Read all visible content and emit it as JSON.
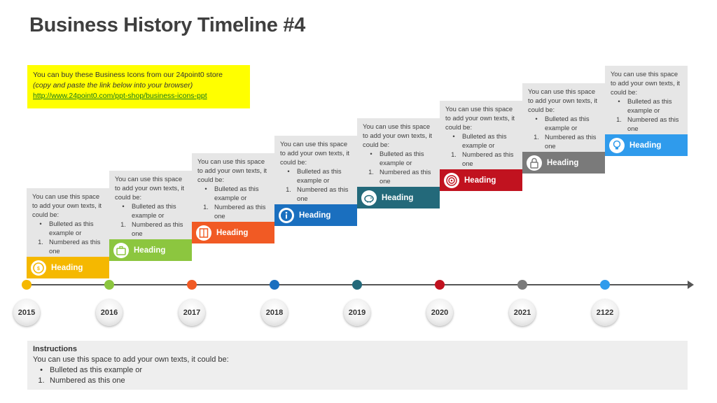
{
  "title": "Business History Timeline #4",
  "promo": {
    "line1": "You can buy these Business Icons from our 24point0 store",
    "line2": "(copy and paste the link below into your browser)",
    "line3": "http://www.24point0.com/ppt-shop/business-icons-ppt"
  },
  "card_text": {
    "intro": "You can use this space to add your own texts, it could be:",
    "bullet_mark": "•",
    "bullet": "Bulleted as this example or",
    "number_mark": "1.",
    "number": "Numbered  as this one"
  },
  "cards": [
    {
      "heading": "Heading",
      "color": "#f5b800",
      "icon": "coin-icon"
    },
    {
      "heading": "Heading",
      "color": "#8cc63f",
      "icon": "briefcase-icon"
    },
    {
      "heading": "Heading",
      "color": "#f15a24",
      "icon": "book-icon"
    },
    {
      "heading": "Heading",
      "color": "#1a6fbf",
      "icon": "info-icon"
    },
    {
      "heading": "Heading",
      "color": "#23697a",
      "icon": "piggy-bank-icon"
    },
    {
      "heading": "Heading",
      "color": "#c1121f",
      "icon": "target-icon"
    },
    {
      "heading": "Heading",
      "color": "#7a7a7a",
      "icon": "lock-icon"
    },
    {
      "heading": "Heading",
      "color": "#2f9bec",
      "icon": "lightbulb-icon"
    }
  ],
  "years": [
    "2015",
    "2016",
    "2017",
    "2018",
    "2019",
    "2020",
    "2021",
    "2122"
  ],
  "instructions": {
    "heading": "Instructions",
    "line1": "You can use this space to add your own texts, it could be:",
    "bullet_mark": "•",
    "bullet": "Bulleted as this example or",
    "number_mark": "1.",
    "number": "Numbered  as this one"
  }
}
